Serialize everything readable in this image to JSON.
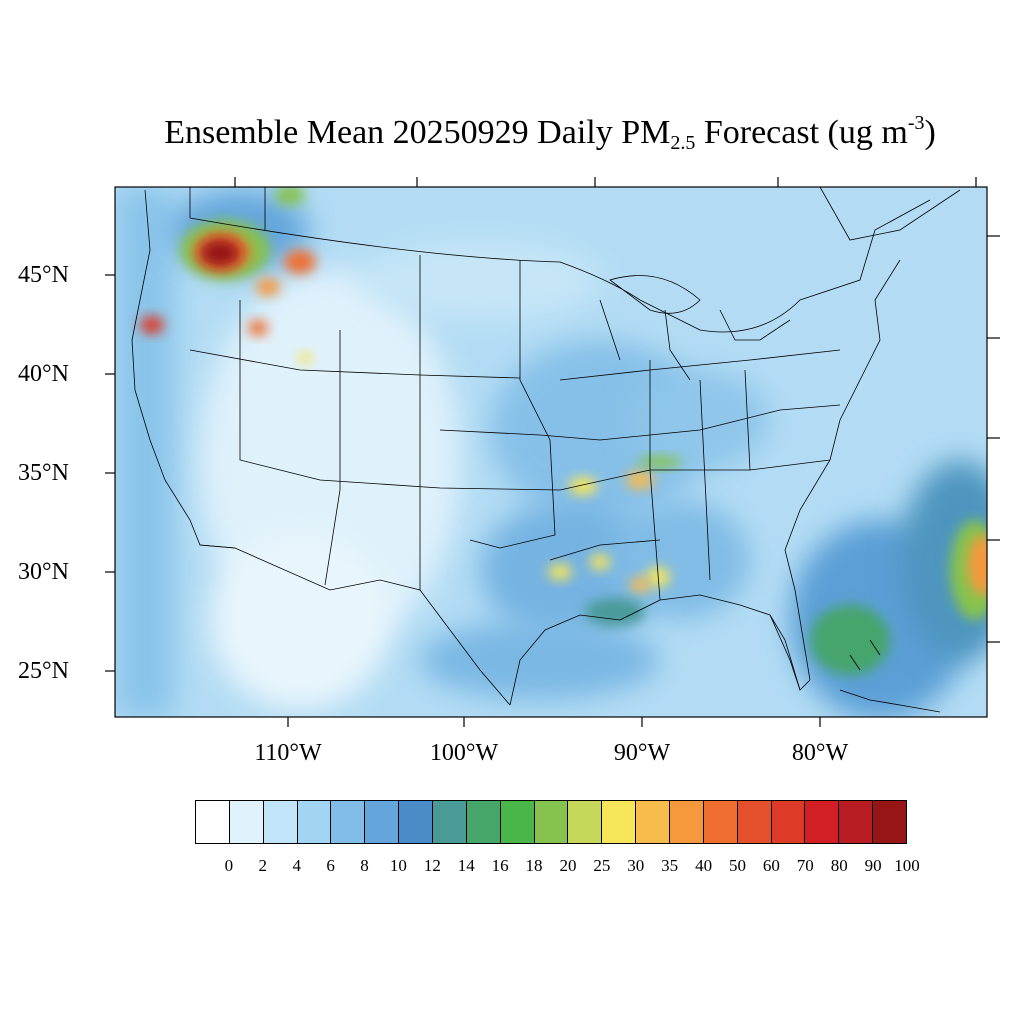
{
  "title": {
    "prefix": "Ensemble Mean 20250929 Daily PM",
    "subscript": "2.5",
    "middle": " Forecast (ug m",
    "superscript": "-3",
    "suffix": ")"
  },
  "lat_labels": [
    "45°N",
    "40°N",
    "35°N",
    "30°N",
    "25°N"
  ],
  "lon_labels": [
    "110°W",
    "100°W",
    "90°W",
    "80°W"
  ],
  "colorbar": {
    "labels": [
      "0",
      "2",
      "4",
      "6",
      "8",
      "10",
      "12",
      "14",
      "16",
      "18",
      "20",
      "25",
      "30",
      "35",
      "40",
      "50",
      "60",
      "70",
      "80",
      "90",
      "100"
    ],
    "colors": [
      "#ffffff",
      "#e0f2fb",
      "#c1e5f8",
      "#a1d5f3",
      "#82bde8",
      "#64a6dc",
      "#4a8cc8",
      "#4a9a98",
      "#46a66a",
      "#4ab548",
      "#86c34e",
      "#c6d75a",
      "#f7e55a",
      "#f7bc4c",
      "#f6983c",
      "#f06e30",
      "#e5502c",
      "#de3a28",
      "#d21f26",
      "#b71c22",
      "#961618"
    ]
  },
  "map": {
    "lon_range": [
      -119,
      -70
    ],
    "lat_range": [
      22.5,
      49.5
    ],
    "background_color": "#a8d8f2"
  }
}
